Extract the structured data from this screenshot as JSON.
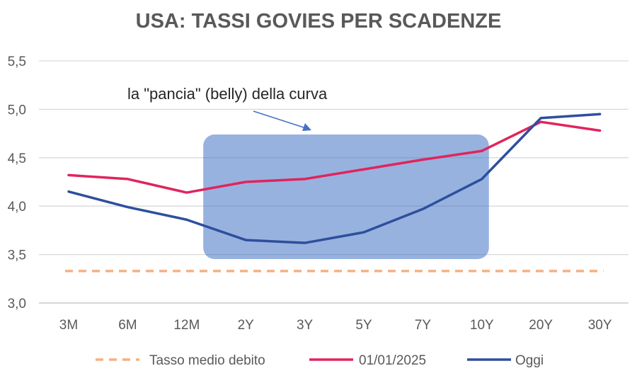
{
  "chart_data": {
    "type": "line",
    "title": "USA: TASSI GOVIES PER SCADENZE",
    "categories": [
      "3M",
      "6M",
      "12M",
      "2Y",
      "3Y",
      "5Y",
      "7Y",
      "10Y",
      "20Y",
      "30Y"
    ],
    "y_tick_labels": [
      "3,0",
      "3,5",
      "4,0",
      "4,5",
      "5,0",
      "5,5"
    ],
    "ylim": [
      3.0,
      5.5
    ],
    "grid": true,
    "legend_position": "bottom",
    "series": [
      {
        "name": "Tasso medio debito",
        "color": "#F4B183",
        "style": "dashed",
        "values": [
          3.33,
          3.33,
          3.33,
          3.33,
          3.33,
          3.33,
          3.33,
          3.33,
          3.33,
          3.33
        ]
      },
      {
        "name": "01/01/2025",
        "color": "#E0245E",
        "style": "solid",
        "values": [
          4.32,
          4.28,
          4.14,
          4.25,
          4.28,
          4.38,
          4.48,
          4.57,
          4.87,
          4.78
        ]
      },
      {
        "name": "Oggi",
        "color": "#2E4F9E",
        "style": "solid",
        "values": [
          4.15,
          3.99,
          3.86,
          3.65,
          3.62,
          3.73,
          3.97,
          4.28,
          4.91,
          4.95
        ]
      }
    ],
    "annotation": {
      "text": "la \"pancia\" (belly) della curva",
      "highlight_from": "2Y",
      "highlight_to": "10Y",
      "highlight_color": "#4472C4"
    }
  }
}
